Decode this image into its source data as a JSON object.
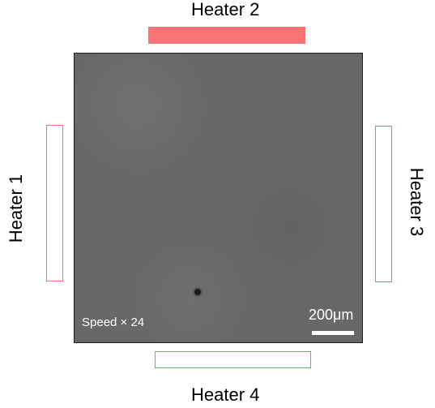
{
  "heaters": [
    {
      "label": "Heater 1",
      "side": "left",
      "state": "off",
      "color": "#f07070"
    },
    {
      "label": "Heater 2",
      "side": "top",
      "state": "on",
      "color": "#f87373"
    },
    {
      "label": "Heater 3",
      "side": "right",
      "state": "off",
      "color": "#f07070"
    },
    {
      "label": "Heater 4",
      "side": "bottom",
      "state": "off",
      "color": "#f07070"
    }
  ],
  "micrograph": {
    "speed_label": "Speed × 24",
    "scale_bar_label": "200μm",
    "background_color": "#686868"
  }
}
